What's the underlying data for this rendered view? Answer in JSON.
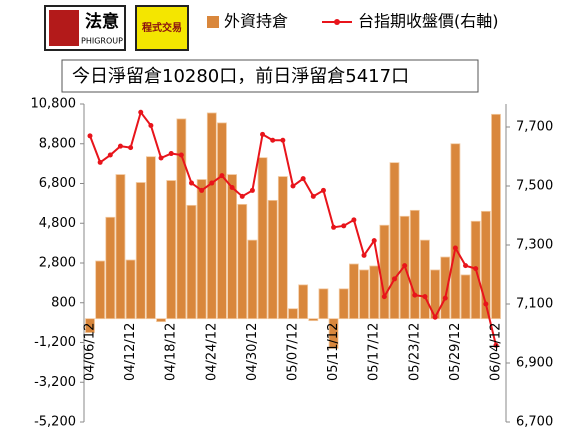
{
  "logos": {
    "brand": "法意",
    "brand_en": "PHIGROUP",
    "product": "程式交易"
  },
  "chart_data": {
    "type": "bar_line",
    "annotation": "今日淨留倉10280口，前日淨留倉5417口",
    "categories": [
      "04/06/12",
      null,
      null,
      null,
      "04/12/12",
      null,
      null,
      null,
      "04/18/12",
      null,
      null,
      null,
      "04/24/12",
      null,
      null,
      null,
      "04/30/12",
      null,
      null,
      null,
      "05/07/12",
      null,
      null,
      null,
      "05/11/12",
      null,
      null,
      null,
      "05/17/12",
      null,
      null,
      null,
      "05/23/12",
      null,
      null,
      null,
      "05/29/12",
      null,
      null,
      null,
      "06/04/12"
    ],
    "series": [
      {
        "name": "外資持倉",
        "type": "bar",
        "color": "#d9873c",
        "values": [
          -700,
          2900,
          5100,
          7250,
          2950,
          6850,
          8150,
          -150,
          6950,
          10050,
          5700,
          7000,
          10350,
          9850,
          7250,
          5750,
          3950,
          8100,
          5950,
          7150,
          500,
          1700,
          -100,
          1500,
          -1500,
          1500,
          2750,
          2450,
          2650,
          4700,
          7850,
          5150,
          5450,
          3950,
          2450,
          3100,
          8800,
          2200,
          4900,
          5400,
          10280
        ]
      },
      {
        "name": "台指期收盤價(右軸)",
        "type": "line",
        "axis": "y2",
        "color": "#e8141b",
        "values": [
          7670,
          7580,
          7605,
          7635,
          7630,
          7750,
          7705,
          7595,
          7610,
          7605,
          7510,
          7485,
          7510,
          7535,
          7495,
          7465,
          7485,
          7675,
          7655,
          7655,
          7500,
          7525,
          7465,
          7485,
          7360,
          7365,
          7385,
          7265,
          7315,
          7125,
          7185,
          7230,
          7130,
          7125,
          7055,
          7120,
          7290,
          7230,
          7220,
          7100,
          6960
        ]
      }
    ],
    "ylim": [
      -5200,
      10800
    ],
    "yticks": [
      {
        "value": -5200,
        "label": "-5,200"
      },
      {
        "value": -3200,
        "label": "-3,200"
      },
      {
        "value": -1200,
        "label": "-1,200"
      },
      800,
      {
        "value": 2800,
        "label": "2,800"
      },
      {
        "value": 4800,
        "label": "4,800"
      },
      {
        "value": 6800,
        "label": "6,800"
      },
      {
        "value": 8800,
        "label": "8,800"
      },
      {
        "value": 10800,
        "label": "10,800"
      }
    ],
    "y2lim": [
      6700,
      7778
    ],
    "y2ticks": [
      {
        "value": 6700,
        "label": "6,700"
      },
      {
        "value": 6900,
        "label": "6,900"
      },
      {
        "value": 7100,
        "label": "7,100"
      },
      {
        "value": 7300,
        "label": "7,300"
      },
      {
        "value": 7500,
        "label": "7,500"
      },
      {
        "value": 7700,
        "label": "7,700"
      }
    ],
    "legend": "top"
  }
}
